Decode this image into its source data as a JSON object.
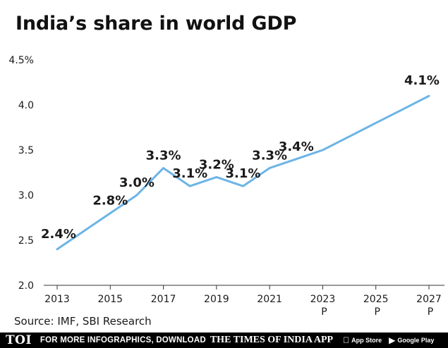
{
  "title": "India’s share in world GDP",
  "source": "Source: IMF, SBI Research",
  "footer": {
    "logo": "TOI",
    "cta": "FOR MORE INFOGRAPHICS, DOWNLOAD",
    "brand": "THE TIMES OF INDIA APP",
    "app_store": "App Store",
    "google_play": "Google Play",
    "app_store_icon": "apple-icon",
    "google_play_icon": "play-icon"
  },
  "chart_data": {
    "type": "line",
    "title": "India’s share in world GDP",
    "xlabel": "",
    "ylabel": "",
    "x": [
      2013,
      2014,
      2015,
      2016,
      2017,
      2018,
      2019,
      2020,
      2021,
      2022,
      2023,
      2024,
      2025,
      2026,
      2027
    ],
    "values": [
      2.4,
      2.6,
      2.8,
      3.0,
      3.3,
      3.1,
      3.2,
      3.1,
      3.3,
      3.4,
      3.5,
      3.65,
      3.8,
      3.95,
      4.1
    ],
    "data_labels": [
      {
        "x": 2013,
        "text": "2.4%"
      },
      {
        "x": 2015,
        "text": "2.8%"
      },
      {
        "x": 2016,
        "text": "3.0%"
      },
      {
        "x": 2017,
        "text": "3.3%"
      },
      {
        "x": 2018,
        "text": "3.1%"
      },
      {
        "x": 2019,
        "text": "3.2%"
      },
      {
        "x": 2020,
        "text": "3.1%"
      },
      {
        "x": 2021,
        "text": "3.3%"
      },
      {
        "x": 2022,
        "text": "3.4%"
      },
      {
        "x": 2027,
        "text": "4.1%"
      }
    ],
    "x_ticks": [
      {
        "value": 2013,
        "label": "2013",
        "sub": ""
      },
      {
        "value": 2015,
        "label": "2015",
        "sub": ""
      },
      {
        "value": 2017,
        "label": "2017",
        "sub": ""
      },
      {
        "value": 2019,
        "label": "2019",
        "sub": ""
      },
      {
        "value": 2021,
        "label": "2021",
        "sub": ""
      },
      {
        "value": 2023,
        "label": "2023",
        "sub": "P"
      },
      {
        "value": 2025,
        "label": "2025",
        "sub": "P"
      },
      {
        "value": 2027,
        "label": "2027",
        "sub": "P"
      }
    ],
    "y_ticks": [
      {
        "value": 2.0,
        "label": "2.0"
      },
      {
        "value": 2.5,
        "label": "2.5"
      },
      {
        "value": 3.0,
        "label": "3.0"
      },
      {
        "value": 3.5,
        "label": "3.5"
      },
      {
        "value": 4.0,
        "label": "4.0"
      },
      {
        "value": 4.5,
        "label": "4.5%"
      }
    ],
    "ylim": [
      2.0,
      4.5
    ],
    "xlim": [
      2013,
      2027
    ],
    "grid": false,
    "colors": {
      "line": "#6cb4e6",
      "axis": "#333333",
      "text": "#1a1a1a"
    }
  }
}
